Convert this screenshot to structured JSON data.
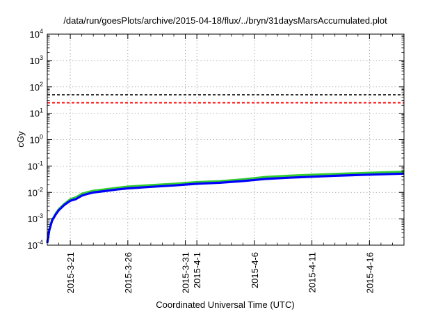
{
  "chart_data": {
    "type": "line",
    "title": "/data/run/goesPlots/archive/2015-04-18/flux/../bryn/31daysMarsAccumulated.plot",
    "xlabel": "Coordinated Universal Time (UTC)",
    "ylabel": "cGy",
    "yscale": "log",
    "ylim": [
      0.0001,
      10000
    ],
    "xlim": [
      "2015-03-19T00:00",
      "2015-04-19T00:00"
    ],
    "grid": true,
    "legend": "none",
    "y_ticks": [
      {
        "value": 0.0001,
        "mant": "10",
        "exp": "-4"
      },
      {
        "value": 0.001,
        "mant": "10",
        "exp": "-3"
      },
      {
        "value": 0.01,
        "mant": "10",
        "exp": "-2"
      },
      {
        "value": 0.1,
        "mant": "10",
        "exp": "-1"
      },
      {
        "value": 1,
        "mant": "10",
        "exp": "0"
      },
      {
        "value": 10,
        "mant": "10",
        "exp": "1"
      },
      {
        "value": 100,
        "mant": "10",
        "exp": "2"
      },
      {
        "value": 1000,
        "mant": "10",
        "exp": "3"
      },
      {
        "value": 10000,
        "mant": "10",
        "exp": "4"
      }
    ],
    "x_ticks": [
      {
        "date": "2015-03-21",
        "label": "2015-3-21"
      },
      {
        "date": "2015-03-26",
        "label": "2015-3-26"
      },
      {
        "date": "2015-03-31",
        "label": "2015-3-31"
      },
      {
        "date": "2015-04-01",
        "label": "2015-4-1"
      },
      {
        "date": "2015-04-06",
        "label": "2015-4-6"
      },
      {
        "date": "2015-04-11",
        "label": "2015-4-11"
      },
      {
        "date": "2015-04-16",
        "label": "2015-4-16"
      }
    ],
    "x_minor_ticks": [
      "2015-03-20",
      "2015-03-22",
      "2015-03-23",
      "2015-03-24",
      "2015-03-25",
      "2015-03-27",
      "2015-03-28",
      "2015-03-29",
      "2015-03-30",
      "2015-04-02",
      "2015-04-03",
      "2015-04-04",
      "2015-04-05",
      "2015-04-07",
      "2015-04-08",
      "2015-04-09",
      "2015-04-10",
      "2015-04-12",
      "2015-04-13",
      "2015-04-14",
      "2015-04-15",
      "2015-04-17",
      "2015-04-18"
    ],
    "reference_lines": [
      {
        "y": 50,
        "color": "#000000",
        "dash": true
      },
      {
        "y": 25,
        "color": "#ff0000",
        "dash": true
      }
    ],
    "series": [
      {
        "color": "#33cc33",
        "x": [
          "2015-03-19T00:00",
          "2015-03-19T04:00",
          "2015-03-19T10:00",
          "2015-03-19T18:00",
          "2015-03-20T00:00",
          "2015-03-20T12:00",
          "2015-03-21T00:00",
          "2015-03-21T12:00",
          "2015-03-22T00:00",
          "2015-03-22T12:00",
          "2015-03-23T00:00",
          "2015-03-24T00:00",
          "2015-03-25T00:00",
          "2015-03-26T00:00",
          "2015-03-28T00:00",
          "2015-03-30T00:00",
          "2015-04-01T00:00",
          "2015-04-03T00:00",
          "2015-04-05T00:00",
          "2015-04-07T00:00",
          "2015-04-09T00:00",
          "2015-04-11T00:00",
          "2015-04-13T00:00",
          "2015-04-15T00:00",
          "2015-04-17T00:00",
          "2015-04-19T00:00"
        ],
        "values": [
          0.00013,
          0.0004,
          0.0009,
          0.0016,
          0.0023,
          0.0037,
          0.0055,
          0.0065,
          0.0088,
          0.0102,
          0.0115,
          0.013,
          0.0148,
          0.0165,
          0.0188,
          0.021,
          0.0245,
          0.0265,
          0.031,
          0.0385,
          0.0428,
          0.0465,
          0.05,
          0.0535,
          0.057,
          0.0605
        ]
      },
      {
        "color": "#0000ff",
        "x": [
          "2015-03-19T00:00",
          "2015-03-19T04:00",
          "2015-03-19T10:00",
          "2015-03-19T18:00",
          "2015-03-20T00:00",
          "2015-03-20T12:00",
          "2015-03-21T00:00",
          "2015-03-21T12:00",
          "2015-03-22T00:00",
          "2015-03-22T12:00",
          "2015-03-23T00:00",
          "2015-03-24T00:00",
          "2015-03-25T00:00",
          "2015-03-26T00:00",
          "2015-03-28T00:00",
          "2015-03-30T00:00",
          "2015-04-01T00:00",
          "2015-04-03T00:00",
          "2015-04-05T00:00",
          "2015-04-07T00:00",
          "2015-04-09T00:00",
          "2015-04-11T00:00",
          "2015-04-13T00:00",
          "2015-04-15T00:00",
          "2015-04-17T00:00",
          "2015-04-19T00:00"
        ],
        "values": [
          0.00012,
          0.00036,
          0.00085,
          0.0015,
          0.0021,
          0.0034,
          0.0048,
          0.0056,
          0.0075,
          0.0088,
          0.0099,
          0.0112,
          0.0128,
          0.0142,
          0.0162,
          0.0183,
          0.0212,
          0.0232,
          0.0268,
          0.0325,
          0.036,
          0.0392,
          0.0425,
          0.0455,
          0.0485,
          0.0515
        ]
      }
    ]
  }
}
